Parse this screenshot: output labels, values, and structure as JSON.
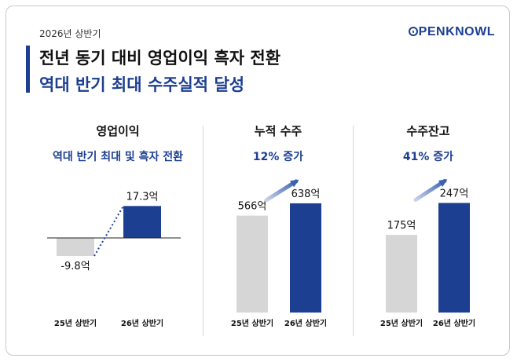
{
  "header": {
    "period": "2026년 상반기",
    "logo": "OPENKNOWL",
    "title_line1": "전년 동기 대비 영업이익 흑자 전환",
    "title_line2": "역대 반기 최대 수주실적 달성"
  },
  "colors": {
    "accent": "#1c3f92",
    "bar_prev": "#d6d6d6",
    "bar_curr": "#1c3f92"
  },
  "chart_data": [
    {
      "type": "bar",
      "title": "영업이익",
      "subtitle": "역대 반기 최대 및 흑자 전환",
      "categories": [
        "25년 상반기",
        "26년 상반기"
      ],
      "values": [
        -9.8,
        17.3
      ],
      "value_labels": [
        "-9.8억",
        "17.3억"
      ],
      "unit": "억"
    },
    {
      "type": "bar",
      "title": "누적 수주",
      "subtitle": "12% 증가",
      "categories": [
        "25년 상반기",
        "26년 상반기"
      ],
      "values": [
        566,
        638
      ],
      "value_labels": [
        "566억",
        "638억"
      ],
      "unit": "억"
    },
    {
      "type": "bar",
      "title": "수주잔고",
      "subtitle": "41% 증가",
      "categories": [
        "25년 상반기",
        "26년 상반기"
      ],
      "values": [
        175,
        247
      ],
      "value_labels": [
        "175억",
        "247억"
      ],
      "unit": "억"
    }
  ]
}
